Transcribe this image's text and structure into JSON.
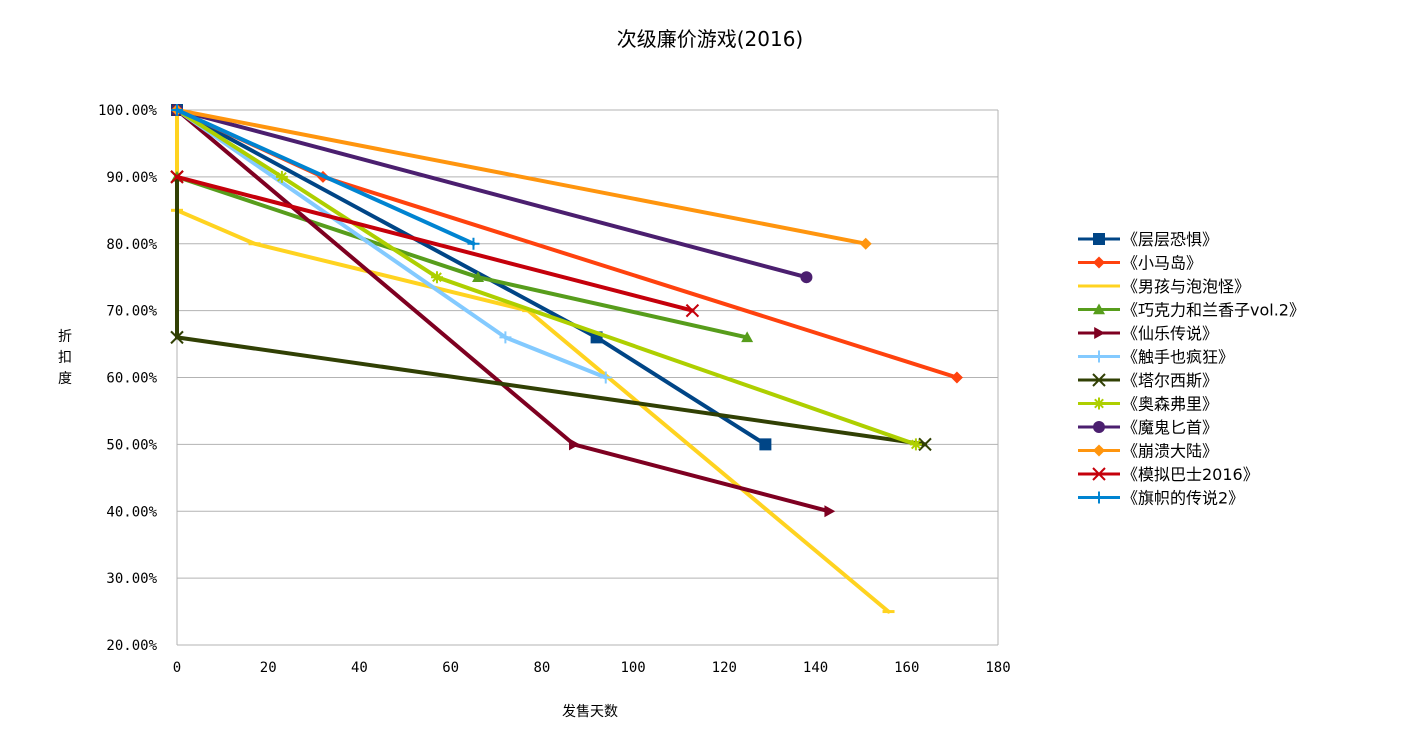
{
  "chart_data": {
    "type": "line",
    "title": "次级廉价游戏(2016)",
    "xlabel": "发售天数",
    "ylabel": "折扣度",
    "xlim": [
      0,
      180
    ],
    "ylim": [
      0.2,
      1.0
    ],
    "x_ticks": [
      0,
      20,
      40,
      60,
      80,
      100,
      120,
      140,
      160,
      180
    ],
    "y_ticks": [
      0.2,
      0.3,
      0.4,
      0.5,
      0.6,
      0.7,
      0.8,
      0.9,
      1.0
    ],
    "x_tick_labels": [
      "0",
      "20",
      "40",
      "60",
      "80",
      "100",
      "120",
      "140",
      "160",
      "180"
    ],
    "y_tick_labels": [
      "20.00%",
      "30.00%",
      "40.00%",
      "50.00%",
      "60.00%",
      "70.00%",
      "80.00%",
      "90.00%",
      "100.00%"
    ],
    "grid": "horizontal",
    "legend_position": "right",
    "series": [
      {
        "name": "《层层恐惧》",
        "color": "#004586",
        "marker": "square",
        "points": [
          [
            0,
            1.0
          ],
          [
            92,
            0.66
          ],
          [
            129,
            0.5
          ]
        ]
      },
      {
        "name": "《小马岛》",
        "color": "#ff420e",
        "marker": "diamond",
        "points": [
          [
            0,
            1.0
          ],
          [
            32,
            0.9
          ],
          [
            171,
            0.6
          ]
        ]
      },
      {
        "name": "《男孩与泡泡怪》",
        "color": "#ffd320",
        "marker": "hline",
        "points": [
          [
            0,
            1.0
          ],
          [
            0,
            0.85
          ],
          [
            17,
            0.8
          ],
          [
            77,
            0.7
          ],
          [
            156,
            0.25
          ]
        ]
      },
      {
        "name": "《巧克力和兰香子vol.2》",
        "color": "#579d1c",
        "marker": "triangle-up",
        "points": [
          [
            0,
            0.9
          ],
          [
            66,
            0.75
          ],
          [
            125,
            0.66
          ]
        ]
      },
      {
        "name": "《仙乐传说》",
        "color": "#7e0021",
        "marker": "triangle-right",
        "points": [
          [
            0,
            1.0
          ],
          [
            87,
            0.5
          ],
          [
            143,
            0.4
          ]
        ]
      },
      {
        "name": "《触手也疯狂》",
        "color": "#83caff",
        "marker": "plus",
        "points": [
          [
            0,
            1.0
          ],
          [
            72,
            0.66
          ],
          [
            94,
            0.6
          ]
        ]
      },
      {
        "name": "《塔尔西斯》",
        "color": "#314004",
        "marker": "x",
        "points": [
          [
            0,
            0.9
          ],
          [
            0,
            0.66
          ],
          [
            164,
            0.5
          ]
        ]
      },
      {
        "name": "《奥森弗里》",
        "color": "#aecf00",
        "marker": "asterisk",
        "points": [
          [
            0,
            1.0
          ],
          [
            23,
            0.9
          ],
          [
            57,
            0.75
          ],
          [
            162,
            0.5
          ]
        ]
      },
      {
        "name": "《魔鬼匕首》",
        "color": "#4b1f6f",
        "marker": "circle",
        "points": [
          [
            0,
            1.0
          ],
          [
            138,
            0.75
          ]
        ]
      },
      {
        "name": "《崩溃大陆》",
        "color": "#ff950e",
        "marker": "diamond",
        "points": [
          [
            0,
            1.0
          ],
          [
            151,
            0.8
          ]
        ]
      },
      {
        "name": "《模拟巴士2016》",
        "color": "#c5000b",
        "marker": "x",
        "points": [
          [
            0,
            0.9
          ],
          [
            113,
            0.7
          ]
        ]
      },
      {
        "name": "《旗帜的传说2》",
        "color": "#0084d1",
        "marker": "plus",
        "points": [
          [
            0,
            1.0
          ],
          [
            65,
            0.8
          ]
        ]
      }
    ]
  }
}
